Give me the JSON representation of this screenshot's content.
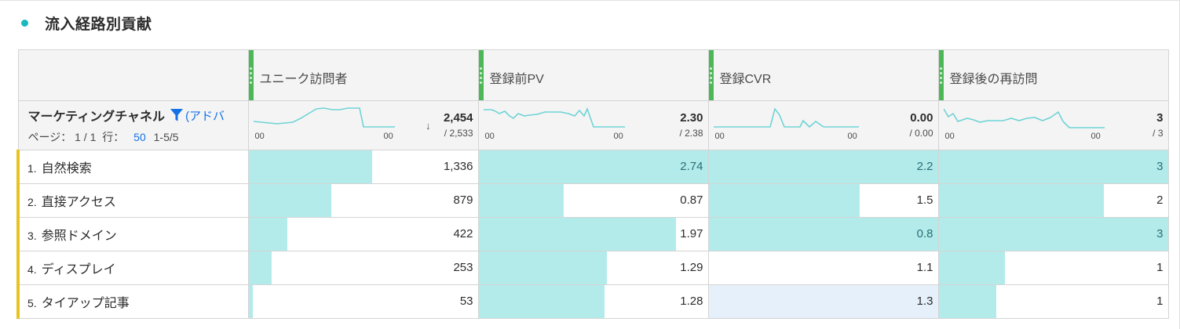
{
  "panel": {
    "title": "流入経路別貢献",
    "accent": "#1bb8c0"
  },
  "dimension": {
    "title": "マーケティングチャネル",
    "link_text": "(アドバ",
    "pager_label": "ページ：",
    "page": "1 / 1",
    "rows_label": "行：",
    "rows_value": "50",
    "range": "1-5/5"
  },
  "columns": [
    {
      "label": "ユニーク訪問者",
      "total": "2,454",
      "sub": "/ 2,533",
      "spark_start": "00",
      "spark_end": "00",
      "sorted": true
    },
    {
      "label": "登録前PV",
      "total": "2.30",
      "sub": "/ 2.38",
      "spark_start": "00",
      "spark_end": "00"
    },
    {
      "label": "登録CVR",
      "total": "0.00",
      "sub": "/ 0.00",
      "spark_start": "00",
      "spark_end": "00"
    },
    {
      "label": "登録後の再訪問",
      "total": "3",
      "sub": "/ 3",
      "spark_start": "00",
      "spark_end": "00"
    }
  ],
  "sort_icon": "arrow-down-icon",
  "rows": [
    {
      "num": "1.",
      "name": "自然検索",
      "values": [
        "1,336",
        "2.74",
        "2.2",
        "3"
      ],
      "fill": [
        0.54,
        1.0,
        1.0,
        1.0
      ]
    },
    {
      "num": "2.",
      "name": "直接アクセス",
      "values": [
        "879",
        "0.87",
        "1.5",
        "2"
      ],
      "fill": [
        0.36,
        0.37,
        0.66,
        0.72
      ]
    },
    {
      "num": "3.",
      "name": "参照ドメイン",
      "values": [
        "422",
        "1.97",
        "0.8",
        "3"
      ],
      "fill": [
        0.17,
        0.86,
        1.0,
        1.0
      ]
    },
    {
      "num": "4.",
      "name": "ディスプレイ",
      "values": [
        "253",
        "1.29",
        "1.1",
        "1"
      ],
      "fill": [
        0.1,
        0.56,
        0.0,
        0.29
      ]
    },
    {
      "num": "5.",
      "name": "タイアップ記事",
      "values": [
        "53",
        "1.28",
        "1.3",
        "1"
      ],
      "fill": [
        0.02,
        0.55,
        0.0,
        0.25
      ],
      "highlight": [
        false,
        false,
        true,
        false
      ]
    }
  ],
  "colors": {
    "bar": "#b3ebeb",
    "column_handle": "#4db758",
    "row_marker": "#e8c21f",
    "link": "#1473e6",
    "highlight_cell": "#e6f0fa"
  }
}
